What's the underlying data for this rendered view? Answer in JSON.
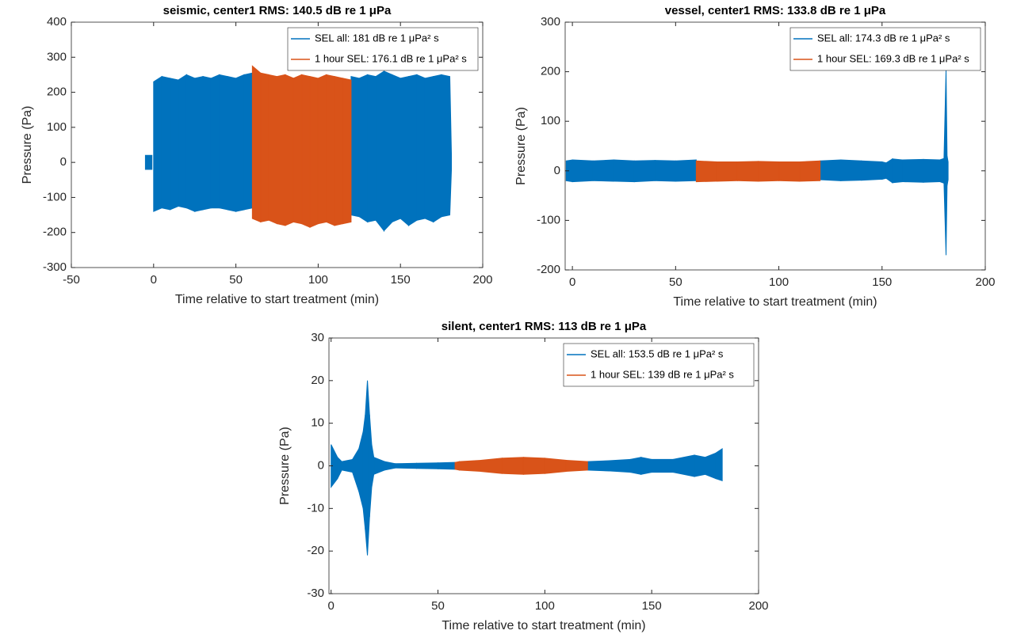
{
  "chart_data": [
    {
      "type": "band",
      "title": "seismic, center1 RMS: 140.5 dB re 1 μPa",
      "xlabel": "Time relative to start treatment (min)",
      "ylabel": "Pressure (Pa)",
      "xlim": [
        -50,
        200
      ],
      "ylim": [
        -300,
        400
      ],
      "xticks": [
        -50,
        0,
        50,
        100,
        150,
        200
      ],
      "yticks": [
        -300,
        -200,
        -100,
        0,
        100,
        200,
        300,
        400
      ],
      "legend": "upper right",
      "series": [
        {
          "name": "SEL all: 181 dB re 1 μPa² s",
          "color": "#0072bd",
          "x": [
            -5,
            -1,
            null,
            0,
            5,
            10,
            15,
            20,
            25,
            30,
            35,
            40,
            45,
            50,
            55,
            60,
            null,
            120,
            125,
            130,
            135,
            140,
            145,
            150,
            155,
            160,
            165,
            170,
            175,
            180,
            181
          ],
          "upper": [
            20,
            20,
            null,
            230,
            245,
            240,
            235,
            250,
            240,
            245,
            240,
            250,
            245,
            240,
            250,
            255,
            null,
            245,
            240,
            250,
            245,
            260,
            250,
            240,
            245,
            250,
            240,
            245,
            250,
            245,
            20
          ],
          "lower": [
            -20,
            -20,
            null,
            -140,
            -130,
            -135,
            -125,
            -130,
            -140,
            -135,
            -130,
            -130,
            -135,
            -140,
            -135,
            -130,
            null,
            -150,
            -155,
            -170,
            -165,
            -195,
            -170,
            -160,
            -180,
            -165,
            -160,
            -170,
            -155,
            -150,
            -20
          ]
        },
        {
          "name": "1 hour SEL: 176.1 dB re 1 μPa² s",
          "color": "#d95319",
          "x": [
            60,
            65,
            70,
            75,
            80,
            85,
            90,
            95,
            100,
            105,
            110,
            115,
            120
          ],
          "upper": [
            275,
            255,
            250,
            245,
            250,
            240,
            250,
            245,
            240,
            250,
            245,
            240,
            235
          ],
          "lower": [
            -160,
            -170,
            -165,
            -175,
            -180,
            -170,
            -175,
            -185,
            -175,
            -170,
            -180,
            -175,
            -170
          ]
        }
      ]
    },
    {
      "type": "band",
      "title": "vessel, center1 RMS: 133.8 dB re 1 μPa",
      "xlabel": "Time relative to start treatment (min)",
      "ylabel": "Pressure (Pa)",
      "xlim": [
        -3.5,
        200
      ],
      "ylim": [
        -200,
        300
      ],
      "xticks": [
        0,
        50,
        100,
        150,
        200
      ],
      "yticks": [
        -200,
        -100,
        0,
        100,
        200,
        300
      ],
      "legend": "upper right",
      "series": [
        {
          "name": "SEL all: 174.3 dB re 1 μPa² s",
          "color": "#0072bd",
          "x": [
            -3,
            0,
            10,
            20,
            30,
            40,
            50,
            60,
            null,
            120,
            130,
            140,
            150,
            152,
            155,
            160,
            170,
            178,
            180,
            181,
            181.5,
            182
          ],
          "upper": [
            20,
            22,
            20,
            22,
            20,
            21,
            20,
            22,
            null,
            20,
            22,
            20,
            18,
            16,
            24,
            22,
            23,
            22,
            25,
            205,
            30,
            18
          ],
          "lower": [
            -20,
            -22,
            -20,
            -21,
            -22,
            -20,
            -21,
            -20,
            null,
            -18,
            -20,
            -19,
            -17,
            -15,
            -24,
            -22,
            -23,
            -22,
            -25,
            -170,
            -30,
            -18
          ]
        },
        {
          "name": "1 hour SEL: 169.3 dB re 1 μPa² s",
          "color": "#d95319",
          "x": [
            60,
            70,
            80,
            90,
            100,
            110,
            120
          ],
          "upper": [
            20,
            18,
            18,
            19,
            18,
            18,
            20
          ],
          "lower": [
            -22,
            -21,
            -20,
            -21,
            -20,
            -21,
            -20
          ]
        }
      ]
    },
    {
      "type": "band",
      "title": "silent, center1 RMS: 113 dB re 1 μPa",
      "xlabel": "Time relative to start treatment (min)",
      "ylabel": "Pressure (Pa)",
      "xlim": [
        -1,
        200
      ],
      "ylim": [
        -30,
        30
      ],
      "xticks": [
        0,
        50,
        100,
        150,
        200
      ],
      "yticks": [
        -30,
        -20,
        -10,
        0,
        10,
        20,
        30
      ],
      "legend": "upper right",
      "series": [
        {
          "name": "SEL all: 153.5 dB re 1 μPa² s",
          "color": "#0072bd",
          "x": [
            0,
            3,
            5,
            10,
            13,
            15,
            16,
            17,
            18,
            19,
            20,
            25,
            30,
            40,
            50,
            58,
            null,
            120,
            130,
            140,
            145,
            150,
            160,
            170,
            175,
            180,
            183
          ],
          "upper": [
            5,
            2,
            1,
            1.5,
            4,
            8,
            12,
            20,
            12,
            5,
            2,
            1,
            0.5,
            0.6,
            0.7,
            0.8,
            null,
            1,
            1.2,
            1.5,
            2,
            1.5,
            1.5,
            2.5,
            2,
            3,
            4
          ],
          "lower": [
            -5,
            -3,
            -1,
            -1.5,
            -6,
            -10,
            -15,
            -21,
            -12,
            -5,
            -2,
            -1,
            -0.5,
            -0.6,
            -0.7,
            -0.8,
            null,
            -1,
            -1.2,
            -1.5,
            -2,
            -1.5,
            -1.5,
            -2.5,
            -2,
            -3,
            -3.5
          ]
        },
        {
          "name": "1 hour SEL: 139 dB re 1 μPa² s",
          "color": "#d95319",
          "x": [
            58,
            60,
            70,
            80,
            90,
            100,
            110,
            120
          ],
          "upper": [
            0.8,
            1,
            1.3,
            1.8,
            2,
            1.8,
            1.3,
            1
          ],
          "lower": [
            -0.8,
            -1,
            -1.3,
            -1.8,
            -2,
            -1.8,
            -1.3,
            -1
          ]
        }
      ]
    }
  ]
}
